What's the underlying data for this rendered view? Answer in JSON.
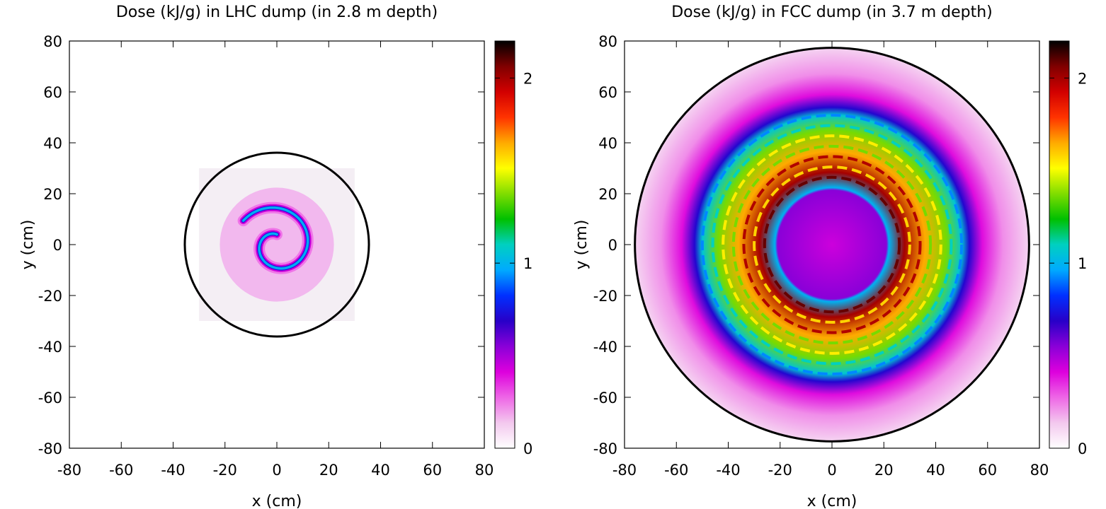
{
  "chart_data": [
    {
      "type": "heatmap",
      "title": "Dose (kJ/g) in LHC dump (in 2.8 m depth)",
      "xlabel": "x (cm)",
      "ylabel": "y (cm)",
      "xlim": [
        -80,
        80
      ],
      "ylim": [
        -80,
        80
      ],
      "xticks": [
        "-80",
        "-60",
        "-40",
        "-20",
        "0",
        "20",
        "40",
        "60",
        "80"
      ],
      "yticks": [
        "80",
        "60",
        "40",
        "20",
        "0",
        "-20",
        "-40",
        "-60",
        "-80"
      ],
      "colorbar": {
        "min": 0,
        "max": 2.2,
        "ticks": [
          "0",
          "1",
          "2"
        ]
      },
      "dump_radius_cm": 35.5,
      "pattern": "spiral",
      "spiral": {
        "r_start_cm": 4,
        "r_end_cm": 16,
        "turns": 1.15,
        "peak_dose": 1.0
      }
    },
    {
      "type": "heatmap",
      "title": "Dose (kJ/g) in FCC dump (in 3.7 m depth)",
      "xlabel": "x (cm)",
      "ylabel": "y (cm)",
      "xlim": [
        -80,
        80
      ],
      "ylim": [
        -80,
        80
      ],
      "xticks": [
        "-80",
        "-60",
        "-40",
        "-20",
        "0",
        "20",
        "40",
        "60",
        "80"
      ],
      "yticks": [
        "80",
        "60",
        "40",
        "20",
        "0",
        "-20",
        "-40",
        "-60",
        "-80"
      ],
      "colorbar": {
        "min": 0,
        "max": 2.2,
        "ticks": [
          "0",
          "1",
          "2"
        ]
      },
      "dump_radius_cm": 76,
      "pattern": "annulus",
      "annulus": {
        "inner_radius_cm": 22,
        "outer_radius_cm": 53,
        "peak_dose": 2.0,
        "peak_radius_cm": 28
      }
    }
  ],
  "colormap": [
    "#ffffff",
    "#f3c8ee",
    "#ee66e6",
    "#dd00dd",
    "#8a00d8",
    "#2800c8",
    "#0030ff",
    "#00aaff",
    "#00d0c0",
    "#00c000",
    "#80dd00",
    "#ffff00",
    "#ffaa00",
    "#ff3300",
    "#d20000",
    "#800000",
    "#000000"
  ]
}
